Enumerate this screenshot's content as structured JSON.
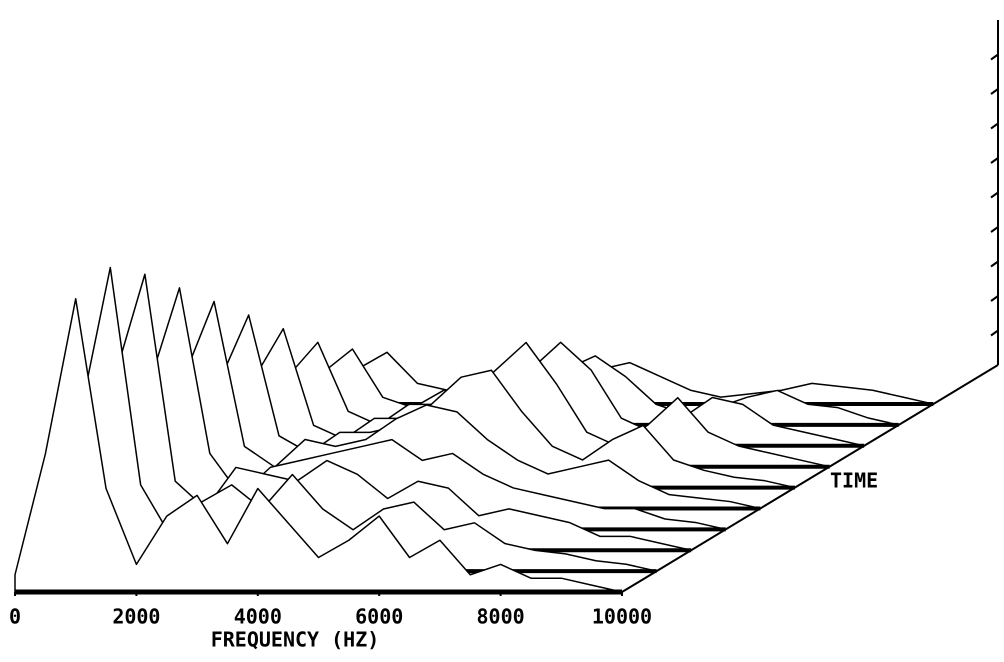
{
  "chart_data": {
    "type": "waterfall",
    "x_label": "FREQUENCY (HZ)",
    "z_label": "TIME",
    "x": [
      0,
      500,
      1000,
      1500,
      2000,
      2500,
      3000,
      3500,
      4000,
      4500,
      5000,
      5500,
      6000,
      6500,
      7000,
      7500,
      8000,
      8500,
      9000,
      9500,
      10000
    ],
    "xlim": [
      0,
      10000
    ],
    "xticks": [
      0,
      2000,
      4000,
      6000,
      8000,
      10000
    ],
    "ylim": [
      0,
      100
    ],
    "yticks": [
      10,
      20,
      30,
      40,
      50,
      60,
      70,
      80,
      90
    ],
    "color": "#000000",
    "series": [
      {
        "values": [
          5,
          40,
          85,
          30,
          8,
          22,
          28,
          14,
          30,
          20,
          10,
          15,
          22,
          10,
          15,
          5,
          8,
          4,
          4,
          2,
          0
        ]
      },
      {
        "values": [
          8,
          45,
          88,
          25,
          10,
          20,
          25,
          18,
          28,
          18,
          12,
          18,
          20,
          12,
          14,
          8,
          6,
          5,
          3,
          2,
          0
        ]
      },
      {
        "values": [
          6,
          50,
          80,
          20,
          12,
          24,
          22,
          20,
          26,
          22,
          15,
          20,
          18,
          10,
          12,
          10,
          8,
          4,
          4,
          2,
          0
        ]
      },
      {
        "values": [
          5,
          42,
          70,
          22,
          10,
          18,
          20,
          22,
          24,
          26,
          20,
          22,
          16,
          12,
          10,
          8,
          6,
          6,
          3,
          2,
          0
        ]
      },
      {
        "values": [
          4,
          38,
          60,
          18,
          12,
          20,
          18,
          20,
          26,
          30,
          28,
          20,
          14,
          10,
          12,
          14,
          8,
          4,
          3,
          2,
          0
        ]
      },
      {
        "values": [
          4,
          30,
          50,
          15,
          10,
          16,
          16,
          18,
          24,
          32,
          34,
          22,
          12,
          8,
          14,
          18,
          8,
          5,
          3,
          2,
          0
        ]
      },
      {
        "values": [
          3,
          25,
          40,
          12,
          8,
          14,
          14,
          16,
          20,
          28,
          36,
          24,
          10,
          6,
          12,
          20,
          10,
          6,
          4,
          2,
          0
        ]
      },
      {
        "values": [
          3,
          20,
          30,
          10,
          6,
          12,
          12,
          14,
          16,
          22,
          30,
          22,
          8,
          4,
          8,
          14,
          12,
          6,
          4,
          2,
          0
        ]
      },
      {
        "values": [
          2,
          15,
          22,
          8,
          5,
          10,
          10,
          10,
          12,
          16,
          20,
          14,
          6,
          3,
          5,
          8,
          10,
          6,
          5,
          2,
          0
        ]
      },
      {
        "values": [
          2,
          10,
          15,
          6,
          4,
          6,
          6,
          8,
          8,
          10,
          12,
          8,
          4,
          2,
          3,
          4,
          6,
          5,
          4,
          2,
          0
        ]
      }
    ]
  }
}
